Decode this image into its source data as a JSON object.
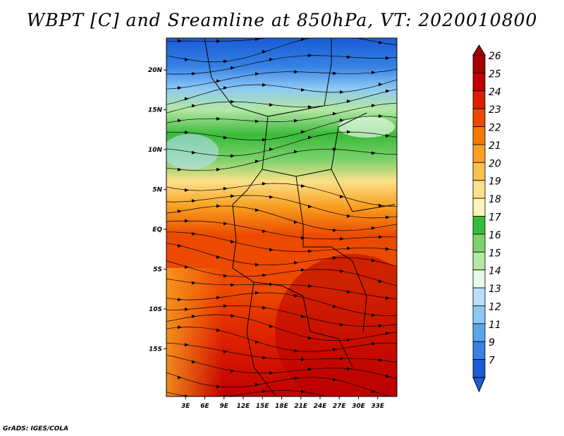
{
  "title": "WBPT [C] and Sreamline at 850hPa, VT: 2020010800",
  "credit": "GrADS: IGES/COLA",
  "map": {
    "lon_range": [
      0,
      36
    ],
    "lat_range": [
      -21,
      24
    ],
    "lat_ticks": [
      {
        "value": 20,
        "label": "20N"
      },
      {
        "value": 15,
        "label": "15N"
      },
      {
        "value": 10,
        "label": "10N"
      },
      {
        "value": 5,
        "label": "5N"
      },
      {
        "value": 0,
        "label": "EQ"
      },
      {
        "value": -5,
        "label": "5S"
      },
      {
        "value": -10,
        "label": "10S"
      },
      {
        "value": -15,
        "label": "15S"
      }
    ],
    "lon_ticks": [
      {
        "value": 3,
        "label": "3E"
      },
      {
        "value": 6,
        "label": "6E"
      },
      {
        "value": 9,
        "label": "9E"
      },
      {
        "value": 12,
        "label": "12E"
      },
      {
        "value": 15,
        "label": "15E"
      },
      {
        "value": 18,
        "label": "18E"
      },
      {
        "value": 21,
        "label": "21E"
      },
      {
        "value": 24,
        "label": "24E"
      },
      {
        "value": 27,
        "label": "27E"
      },
      {
        "value": 30,
        "label": "30E"
      },
      {
        "value": 33,
        "label": "33E"
      }
    ]
  },
  "colorbar": {
    "labels": [
      "26",
      "25",
      "24",
      "23",
      "22",
      "21",
      "20",
      "19",
      "18",
      "17",
      "16",
      "15",
      "14",
      "13",
      "12",
      "11",
      "9",
      "7"
    ],
    "colors": [
      "#a50000",
      "#c00000",
      "#dc1e00",
      "#ec4a00",
      "#f47a00",
      "#f8a020",
      "#fac050",
      "#fce08a",
      "#fff3b8",
      "#3aba3a",
      "#7cd26c",
      "#b4e8a4",
      "#e6fae6",
      "#b8e0f8",
      "#8cc8f4",
      "#5aa6ec",
      "#3682e4",
      "#1a5cd6"
    ]
  }
}
